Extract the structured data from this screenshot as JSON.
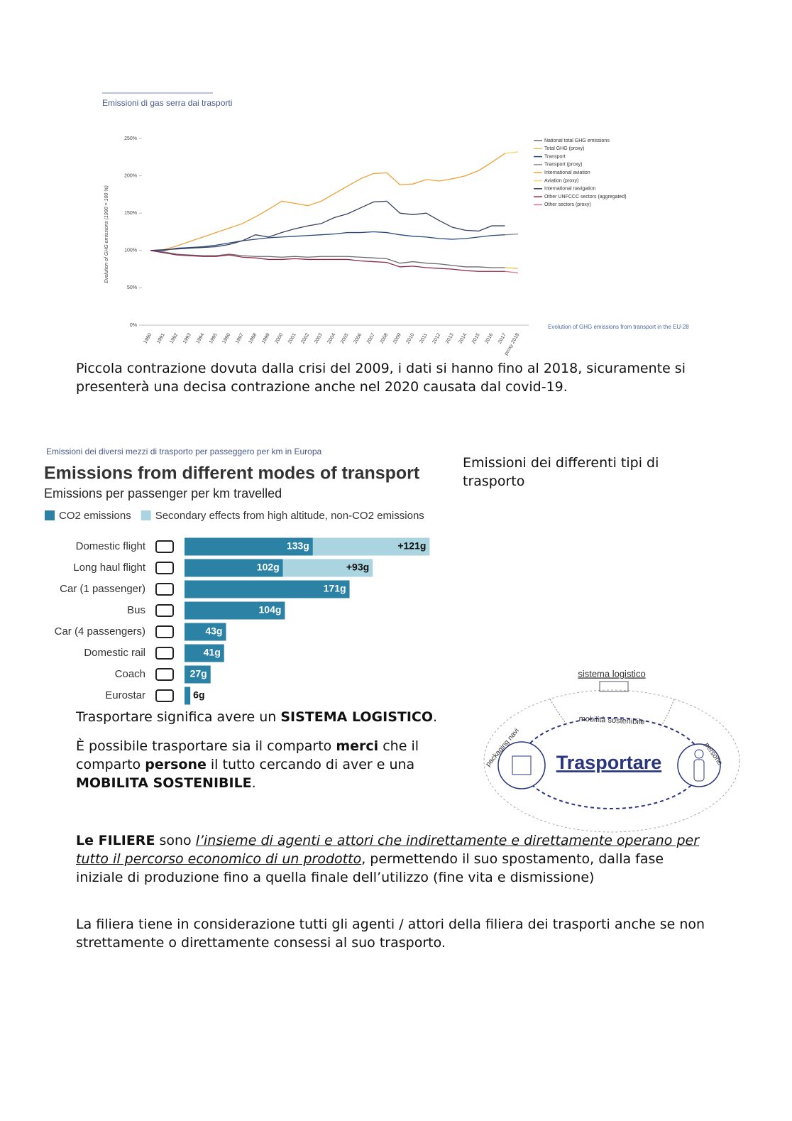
{
  "chart_data": [
    {
      "type": "line",
      "title": "Emissioni di gas serra dai trasporti",
      "y_label": "Evolution of GHG emissions (1990 = 100 %)",
      "caption": "Evolution of GHG emissions from transport in the EU-28",
      "categories": [
        "1990",
        "1991",
        "1992",
        "1993",
        "1994",
        "1995",
        "1996",
        "1997",
        "1998",
        "1999",
        "2000",
        "2001",
        "2002",
        "2003",
        "2004",
        "2005",
        "2006",
        "2007",
        "2008",
        "2009",
        "2010",
        "2011",
        "2012",
        "2013",
        "2014",
        "2015",
        "2016",
        "2017",
        "proxy 2018"
      ],
      "ylim": [
        0,
        250
      ],
      "yticks": [
        {
          "value": 0,
          "label": "0%"
        },
        {
          "value": 50,
          "label": "50%"
        },
        {
          "value": 100,
          "label": "100%"
        },
        {
          "value": 150,
          "label": "150%"
        },
        {
          "value": 200,
          "label": "200%"
        },
        {
          "value": 250,
          "label": "250%"
        }
      ],
      "series": [
        {
          "name": "National total GHG emissions",
          "color": "#6b6b6b",
          "values": [
            100,
            98,
            95,
            94,
            93,
            93,
            95,
            93,
            92,
            92,
            91,
            92,
            91,
            92,
            92,
            92,
            91,
            90,
            89,
            83,
            85,
            83,
            82,
            80,
            78,
            78,
            77,
            77,
            null
          ]
        },
        {
          "name": "Total GHG (proxy)",
          "color": "#e3c25a",
          "values": [
            null,
            null,
            null,
            null,
            null,
            null,
            null,
            null,
            null,
            null,
            null,
            null,
            null,
            null,
            null,
            null,
            null,
            null,
            null,
            null,
            null,
            null,
            null,
            null,
            null,
            null,
            null,
            77,
            76
          ]
        },
        {
          "name": "Transport",
          "color": "#2a4a7a",
          "values": [
            100,
            100,
            103,
            104,
            105,
            107,
            110,
            113,
            115,
            117,
            118,
            119,
            120,
            121,
            122,
            124,
            124,
            125,
            124,
            121,
            119,
            118,
            116,
            115,
            116,
            118,
            120,
            121,
            null
          ]
        },
        {
          "name": "Transport (proxy)",
          "color": "#8a8a8a",
          "values": [
            null,
            null,
            null,
            null,
            null,
            null,
            null,
            null,
            null,
            null,
            null,
            null,
            null,
            null,
            null,
            null,
            null,
            null,
            null,
            null,
            null,
            null,
            null,
            null,
            null,
            null,
            null,
            121,
            122
          ]
        },
        {
          "name": "International aviation",
          "color": "#eea23a",
          "values": [
            100,
            101,
            106,
            112,
            118,
            124,
            130,
            136,
            145,
            155,
            166,
            163,
            160,
            166,
            176,
            186,
            196,
            203,
            204,
            188,
            189,
            195,
            193,
            196,
            200,
            207,
            218,
            230,
            null
          ]
        },
        {
          "name": "Aviation (proxy)",
          "color": "#f3d66a",
          "values": [
            null,
            null,
            null,
            null,
            null,
            null,
            null,
            null,
            null,
            null,
            null,
            null,
            null,
            null,
            null,
            null,
            null,
            null,
            null,
            null,
            null,
            null,
            null,
            null,
            null,
            null,
            null,
            230,
            232
          ]
        },
        {
          "name": "International navigation",
          "color": "#34405e",
          "values": [
            100,
            101,
            102,
            103,
            104,
            105,
            108,
            113,
            121,
            118,
            124,
            129,
            133,
            136,
            144,
            149,
            157,
            165,
            166,
            150,
            148,
            150,
            140,
            131,
            127,
            126,
            133,
            133,
            null
          ]
        },
        {
          "name": "Other UNFCCC sectors (aggregated)",
          "color": "#8c2a4a",
          "values": [
            100,
            97,
            94,
            93,
            92,
            92,
            94,
            91,
            90,
            88,
            88,
            89,
            88,
            88,
            88,
            88,
            86,
            85,
            84,
            78,
            79,
            77,
            76,
            75,
            73,
            72,
            72,
            72,
            null
          ]
        },
        {
          "name": "Other sectors (proxy)",
          "color": "#d8708e",
          "values": [
            null,
            null,
            null,
            null,
            null,
            null,
            null,
            null,
            null,
            null,
            null,
            null,
            null,
            null,
            null,
            null,
            null,
            null,
            null,
            null,
            null,
            null,
            null,
            null,
            null,
            null,
            null,
            72,
            70
          ]
        }
      ]
    },
    {
      "type": "bar",
      "orientation": "horizontal",
      "stacked": true,
      "heading": "Emissioni dei diversi mezzi di trasporto per passeggero per km in Europa",
      "title": "Emissions from different modes of transport",
      "subtitle": "Emissions per passenger per km travelled",
      "categories": [
        "Domestic flight",
        "Long haul flight",
        "Car (1 passenger)",
        "Bus",
        "Car (4 passengers)",
        "Domestic rail",
        "Coach",
        "Eurostar"
      ],
      "series": [
        {
          "name": "CO2 emissions",
          "color": "#2b82a4",
          "values": [
            133,
            102,
            171,
            104,
            43,
            41,
            27,
            6
          ],
          "value_labels": [
            "133g",
            "102g",
            "171g",
            "104g",
            "43g",
            "41g",
            "27g",
            "6g"
          ]
        },
        {
          "name": "Secondary effects from high altitude, non-CO2 emissions",
          "color": "#a9d4e0",
          "values": [
            121,
            93,
            null,
            null,
            null,
            null,
            null,
            null
          ],
          "value_labels": [
            "+121g",
            "+93g",
            null,
            null,
            null,
            null,
            null,
            null
          ]
        }
      ]
    }
  ],
  "text": {
    "paragraph_1": "Piccola contrazione dovuta dalla crisi del 2009, i dati si hanno fino al 2018, sicuramente si presenterà una decisa contrazione anche nel 2020 causata dal covid-19.",
    "side_note": "Emissioni dei differenti tipi di trasporto",
    "paragraph_2": [
      "Trasportare significa avere un ",
      "SISTEMA LOGISTICO",
      "."
    ],
    "paragraph_3": [
      "È possibile trasportare sia il comparto ",
      "merci",
      " che il comparto ",
      "persone",
      " il tutto cercando di aver e una ",
      "MOBILITA SOSTENIBILE",
      "."
    ],
    "paragraph_4": [
      "Le FILIERE",
      " sono ",
      "l’insieme di agenti e attori che indirettamente e direttamente operano per tutto il percorso economico di un prodotto",
      ", permettendo il suo spostamento, dalla fase iniziale di produzione fino a quella finale dell’utilizzo (fine vita e dismissione)"
    ],
    "paragraph_5": "La filiera tiene in considerazione tutti gli agenti / attori della filiera dei trasporti anche se non strettamente o direttamente consessi al suo trasporto."
  },
  "diagram": {
    "top": "sistema logistico",
    "ring": "mobilità sostenibile",
    "left": "packaging navi",
    "center": "Trasportare",
    "right": "persone"
  }
}
